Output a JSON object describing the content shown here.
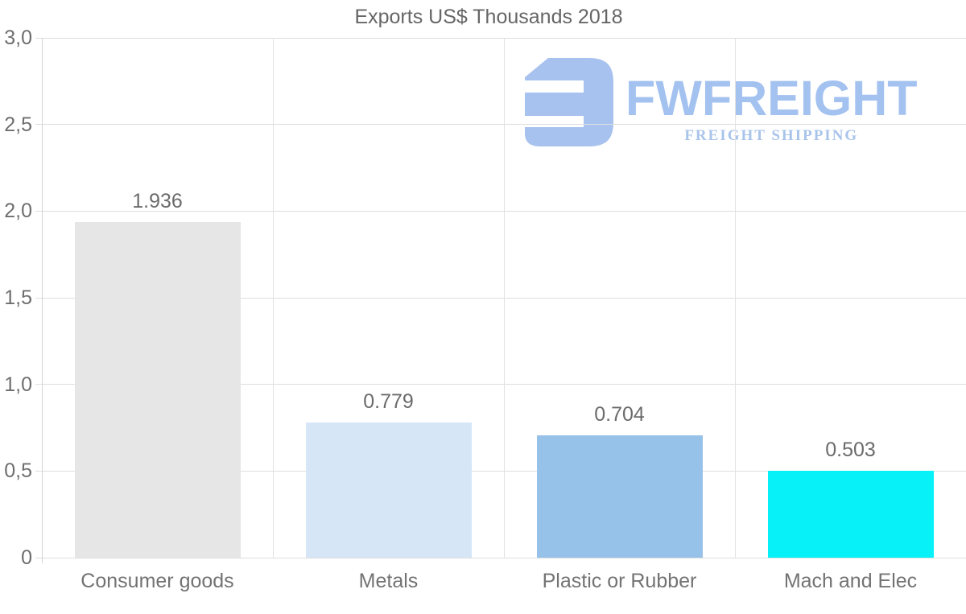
{
  "title": "Exports US$ Thousands 2018",
  "logo": {
    "brand": "FWFREIGHT",
    "tagline": "FREIGHT SHIPPING"
  },
  "chart_data": {
    "type": "bar",
    "title": "Exports US$ Thousands 2018",
    "categories": [
      "Consumer goods",
      "Metals",
      "Plastic or Rubber",
      "Mach and Elec"
    ],
    "values": [
      1.936,
      0.779,
      0.704,
      0.503
    ],
    "value_labels": [
      "1.936",
      "0.779",
      "0.704",
      "0.503"
    ],
    "bar_colors": [
      "#e6e6e6",
      "#d7e6f7",
      "#96c1e8",
      "#06f2f8"
    ],
    "xlabel": "",
    "ylabel": "",
    "ylim": [
      0,
      3
    ],
    "ytick_values": [
      0,
      0.5,
      1,
      1.5,
      2,
      2.5,
      3
    ],
    "ytick_labels": [
      "0",
      "0,5",
      "1,0",
      "1,5",
      "2,0",
      "2,5",
      "3,0"
    ],
    "grid": true,
    "legend": false
  },
  "style": {
    "title_color": "#666666",
    "value_label_color": "#6b6b6b",
    "category_label_color": "#737373",
    "tick_label_color": "#6e6e6e",
    "grid_color": "#dedede",
    "axis_color": "#d4d4d4",
    "background": "#ffffff",
    "logo_icon_color": "#a7c2ef",
    "logo_brand_color": "#a3c2f0",
    "logo_tagline_color": "#a9c4ea"
  }
}
